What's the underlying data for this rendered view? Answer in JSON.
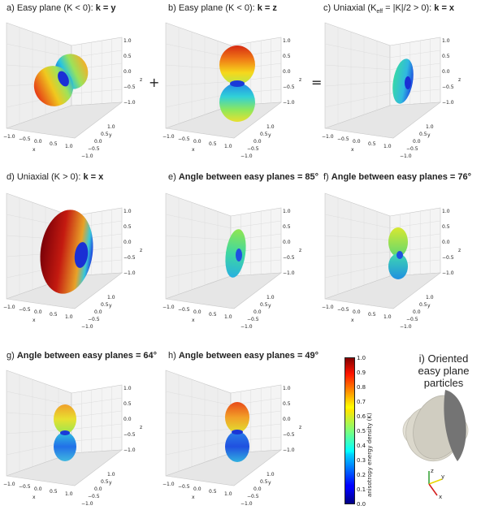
{
  "panels": [
    {
      "id": "a",
      "title_prefix": "a) Easy plane (K < 0): ",
      "title_bold": "k = y"
    },
    {
      "id": "b",
      "title_prefix": "b) Easy plane (K < 0): ",
      "title_bold": "k = z"
    },
    {
      "id": "c",
      "title_prefix": "c) Uniaxial (K",
      "title_sub": "eff",
      "title_mid": " = |K|/2 > 0): ",
      "title_bold": "k = x"
    },
    {
      "id": "d",
      "title_prefix": "d) Uniaxial (K > 0): ",
      "title_bold": "k = x"
    },
    {
      "id": "e",
      "title_prefix": "e) ",
      "title_bold": "Angle between easy planes = 85°"
    },
    {
      "id": "f",
      "title_prefix": "f) ",
      "title_bold": "Angle between easy planes = 76°"
    },
    {
      "id": "g",
      "title_prefix": "g) ",
      "title_bold": "Angle between easy planes = 64°"
    },
    {
      "id": "h",
      "title_prefix": "h) ",
      "title_bold": "Angle between easy planes = 49°"
    }
  ],
  "operators": {
    "plus": "+",
    "equals": "="
  },
  "axes": {
    "x_label": "x",
    "y_label": "y",
    "z_label": "z",
    "x_ticks": [
      "−1.0",
      "−0.5",
      "0.0",
      "0.5",
      "1.0"
    ],
    "y_ticks": [
      "−1.0",
      "−0.5",
      "0.0",
      "0.5",
      "1.0"
    ],
    "z_ticks": [
      "1.0",
      "0.5",
      "0.0",
      "−0.5",
      "−1.0"
    ]
  },
  "colorbar": {
    "label": "anisotropy energy density (K)",
    "ticks": [
      "1.0",
      "0.9",
      "0.8",
      "0.7",
      "0.6",
      "0.5",
      "0.4",
      "0.3",
      "0.2",
      "0.1",
      "0.0"
    ],
    "colormap": "jet"
  },
  "panel_i": {
    "line1": "i) Oriented",
    "line2": "easy plane",
    "line3": "particles"
  },
  "colors": {
    "pane": "#f1f1f1",
    "pane_edge": "#c8c8c8",
    "grid": "#dddddd"
  }
}
